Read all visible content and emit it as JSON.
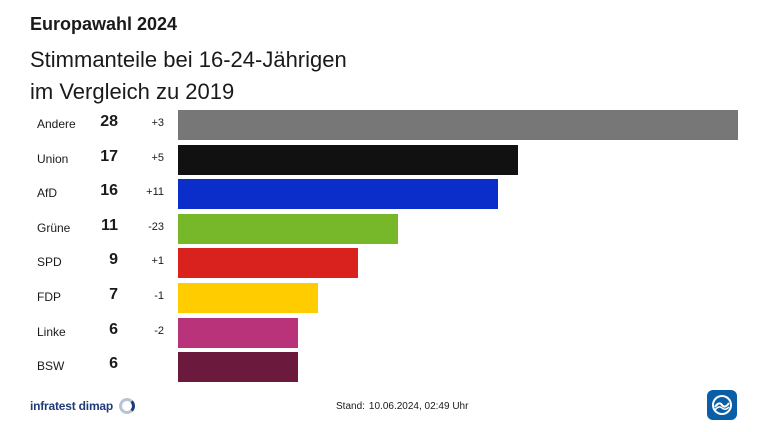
{
  "header": {
    "kicker": "Europawahl 2024",
    "title": "Stimmanteile bei 16-24-Jährigen im Vergleich zu 2019"
  },
  "chart_data": {
    "type": "bar",
    "orientation": "horizontal",
    "title": "Stimmanteile bei 16-24-Jährigen im Vergleich zu 2019",
    "categories": [
      "Andere",
      "Union",
      "AfD",
      "Grüne",
      "SPD",
      "FDP",
      "Linke",
      "BSW"
    ],
    "values": [
      28,
      17,
      16,
      11,
      9,
      7,
      6,
      6
    ],
    "diff_labels": [
      "+3",
      "+5",
      "+11",
      "-23",
      "+1",
      "-1",
      "-2",
      ""
    ],
    "colors": [
      "#777777",
      "#111111",
      "#0b2ecb",
      "#76b82a",
      "#d9211e",
      "#ffcc00",
      "#b8337a",
      "#6b1a3e"
    ],
    "xlim": [
      0,
      28
    ],
    "grid": false,
    "legend": "none"
  },
  "footer": {
    "source": "infratest dimap",
    "stand_label": "Stand:",
    "stand_value": "10.06.2024, 02:49 Uhr"
  },
  "icons": {
    "source_logo": "infratest-dimap-logo-icon",
    "broadcaster_logo": "tagesschau-logo-icon"
  }
}
